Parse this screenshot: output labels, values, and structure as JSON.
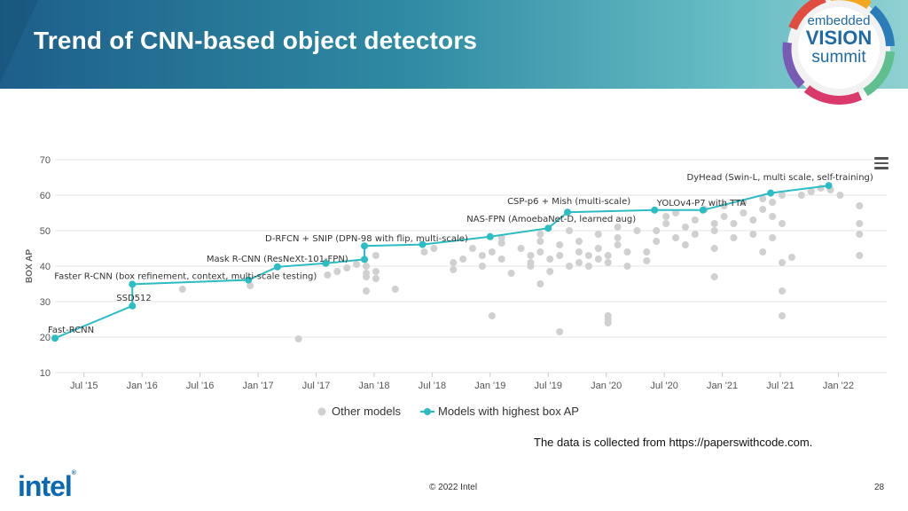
{
  "slide": {
    "title": "Trend of CNN-based object detectors",
    "logo": {
      "line1": "embedded",
      "line2": "VISION",
      "line3": "summit"
    },
    "source_note": "The data is collected from https://paperswithcode.com.",
    "company_logo": "intel",
    "copyright": "© 2022 Intel",
    "page_number": "28",
    "colors": {
      "banner_start": "#1d5f8a",
      "banner_end": "#8fd0d2",
      "accent": "#2bbcc4",
      "intel_blue": "#0a68b4"
    }
  },
  "chart_data": {
    "type": "scatter",
    "title": "",
    "xlabel": "",
    "ylabel": "BOX AP",
    "x_unit": "months since Jan 2015 tick labels",
    "xlim": [
      "2015-04",
      "2022-06"
    ],
    "ylim": [
      10,
      70
    ],
    "yticks": [
      10,
      20,
      30,
      40,
      50,
      60,
      70
    ],
    "xticks": [
      {
        "date": "2015-07",
        "label": "Jul '15"
      },
      {
        "date": "2016-01",
        "label": "Jan '16"
      },
      {
        "date": "2016-07",
        "label": "Jul '16"
      },
      {
        "date": "2017-01",
        "label": "Jan '17"
      },
      {
        "date": "2017-07",
        "label": "Jul '17"
      },
      {
        "date": "2018-01",
        "label": "Jan '18"
      },
      {
        "date": "2018-07",
        "label": "Jul '18"
      },
      {
        "date": "2019-01",
        "label": "Jan '19"
      },
      {
        "date": "2019-07",
        "label": "Jul '19"
      },
      {
        "date": "2020-01",
        "label": "Jan '20"
      },
      {
        "date": "2020-07",
        "label": "Jul '20"
      },
      {
        "date": "2021-01",
        "label": "Jan '21"
      },
      {
        "date": "2021-07",
        "label": "Jul '21"
      },
      {
        "date": "2022-01",
        "label": "Jan '22"
      }
    ],
    "grid": true,
    "legend_placement": "bottom",
    "series": [
      {
        "name": "Other models",
        "color": "#d0d0d0",
        "points": [
          [
            "2016-05",
            33.5
          ],
          [
            "2016-12",
            34.5
          ],
          [
            "2017-05",
            19.5
          ],
          [
            "2017-08",
            37.5
          ],
          [
            "2017-09",
            38.5
          ],
          [
            "2017-10",
            39.5
          ],
          [
            "2017-11",
            40.5
          ],
          [
            "2017-12",
            33
          ],
          [
            "2017-12",
            37
          ],
          [
            "2017-12",
            38
          ],
          [
            "2017-12",
            40
          ],
          [
            "2018-01",
            43
          ],
          [
            "2018-01",
            38.5
          ],
          [
            "2018-01",
            36.5
          ],
          [
            "2018-03",
            33.5
          ],
          [
            "2018-06",
            44
          ],
          [
            "2018-07",
            45
          ],
          [
            "2018-09",
            41
          ],
          [
            "2018-09",
            39
          ],
          [
            "2018-10",
            42
          ],
          [
            "2018-11",
            45
          ],
          [
            "2018-12",
            43
          ],
          [
            "2018-12",
            40
          ],
          [
            "2019-01",
            26
          ],
          [
            "2019-01",
            44
          ],
          [
            "2019-02",
            42
          ],
          [
            "2019-02",
            46.5
          ],
          [
            "2019-02",
            48
          ],
          [
            "2019-03",
            38
          ],
          [
            "2019-04",
            45
          ],
          [
            "2019-05",
            43
          ],
          [
            "2019-05",
            41
          ],
          [
            "2019-05",
            40
          ],
          [
            "2019-06",
            35
          ],
          [
            "2019-06",
            44
          ],
          [
            "2019-06",
            47
          ],
          [
            "2019-06",
            49
          ],
          [
            "2019-07",
            38.5
          ],
          [
            "2019-07",
            42
          ],
          [
            "2019-08",
            21.5
          ],
          [
            "2019-08",
            43
          ],
          [
            "2019-08",
            46
          ],
          [
            "2019-09",
            50
          ],
          [
            "2019-09",
            40
          ],
          [
            "2019-10",
            44
          ],
          [
            "2019-10",
            41
          ],
          [
            "2019-10",
            47
          ],
          [
            "2019-11",
            43
          ],
          [
            "2019-11",
            40
          ],
          [
            "2019-12",
            42
          ],
          [
            "2019-12",
            45
          ],
          [
            "2019-12",
            49
          ],
          [
            "2020-01",
            24
          ],
          [
            "2020-01",
            25
          ],
          [
            "2020-01",
            26
          ],
          [
            "2020-01",
            41
          ],
          [
            "2020-01",
            43
          ],
          [
            "2020-02",
            46
          ],
          [
            "2020-02",
            48
          ],
          [
            "2020-02",
            51
          ],
          [
            "2020-03",
            40
          ],
          [
            "2020-03",
            44
          ],
          [
            "2020-04",
            50
          ],
          [
            "2020-05",
            41.5
          ],
          [
            "2020-05",
            44
          ],
          [
            "2020-06",
            47
          ],
          [
            "2020-06",
            50
          ],
          [
            "2020-07",
            52
          ],
          [
            "2020-07",
            54
          ],
          [
            "2020-08",
            48
          ],
          [
            "2020-08",
            55
          ],
          [
            "2020-09",
            46
          ],
          [
            "2020-09",
            51
          ],
          [
            "2020-10",
            53
          ],
          [
            "2020-10",
            49
          ],
          [
            "2020-11",
            56
          ],
          [
            "2020-12",
            37
          ],
          [
            "2020-12",
            45
          ],
          [
            "2020-12",
            50
          ],
          [
            "2020-12",
            52
          ],
          [
            "2021-01",
            54
          ],
          [
            "2021-01",
            57
          ],
          [
            "2021-02",
            52
          ],
          [
            "2021-02",
            48
          ],
          [
            "2021-03",
            55
          ],
          [
            "2021-03",
            58
          ],
          [
            "2021-04",
            49
          ],
          [
            "2021-04",
            53
          ],
          [
            "2021-05",
            44
          ],
          [
            "2021-05",
            56
          ],
          [
            "2021-05",
            59
          ],
          [
            "2021-06",
            48
          ],
          [
            "2021-06",
            54
          ],
          [
            "2021-06",
            58
          ],
          [
            "2021-07",
            33
          ],
          [
            "2021-07",
            26
          ],
          [
            "2021-07",
            41
          ],
          [
            "2021-07",
            52
          ],
          [
            "2021-07",
            60
          ],
          [
            "2021-08",
            42.5
          ],
          [
            "2021-09",
            60
          ],
          [
            "2021-10",
            61
          ],
          [
            "2021-11",
            62
          ],
          [
            "2021-12",
            61.5
          ],
          [
            "2022-01",
            60
          ],
          [
            "2022-03",
            57
          ],
          [
            "2022-03",
            52
          ],
          [
            "2022-03",
            49
          ],
          [
            "2022-03",
            43
          ]
        ]
      },
      {
        "name": "Models with highest box AP",
        "color": "#2bbcc4",
        "points": [
          {
            "date": "2015-04",
            "value": 19.7,
            "label": "Fast-RCNN"
          },
          {
            "date": "2015-12",
            "value": 28.8,
            "label": "SSD512"
          },
          {
            "date": "2015-12",
            "value": 34.9,
            "label": "Faster R-CNN (box refinement, context, multi-scale testing)"
          },
          {
            "date": "2016-12",
            "value": 36.1,
            "label": ""
          },
          {
            "date": "2017-03",
            "value": 39.8,
            "label": "Mask R-CNN (ResNeXt-101-FPN)"
          },
          {
            "date": "2017-08",
            "value": 40.8,
            "label": ""
          },
          {
            "date": "2017-12",
            "value": 41.9,
            "label": ""
          },
          {
            "date": "2017-12",
            "value": 45.7,
            "label": "D-RFCN + SNIP (DPN-98 with flip, multi-scale)"
          },
          {
            "date": "2018-06",
            "value": 46.1,
            "label": ""
          },
          {
            "date": "2019-01",
            "value": 48.3,
            "label": ""
          },
          {
            "date": "2019-07",
            "value": 50.7,
            "label": "NAS-FPN (AmoebaNet-D, learned aug)"
          },
          {
            "date": "2019-09",
            "value": 55.2,
            "label": "CSP-p6 + Mish (multi-scale)"
          },
          {
            "date": "2020-06",
            "value": 55.8,
            "label": ""
          },
          {
            "date": "2020-11",
            "value": 55.8,
            "label": "YOLOv4-P7 with TTA"
          },
          {
            "date": "2021-06",
            "value": 60.6,
            "label": ""
          },
          {
            "date": "2021-12",
            "value": 62.7,
            "label": "DyHead (Swin-L, multi scale, self-training)"
          }
        ]
      }
    ]
  }
}
